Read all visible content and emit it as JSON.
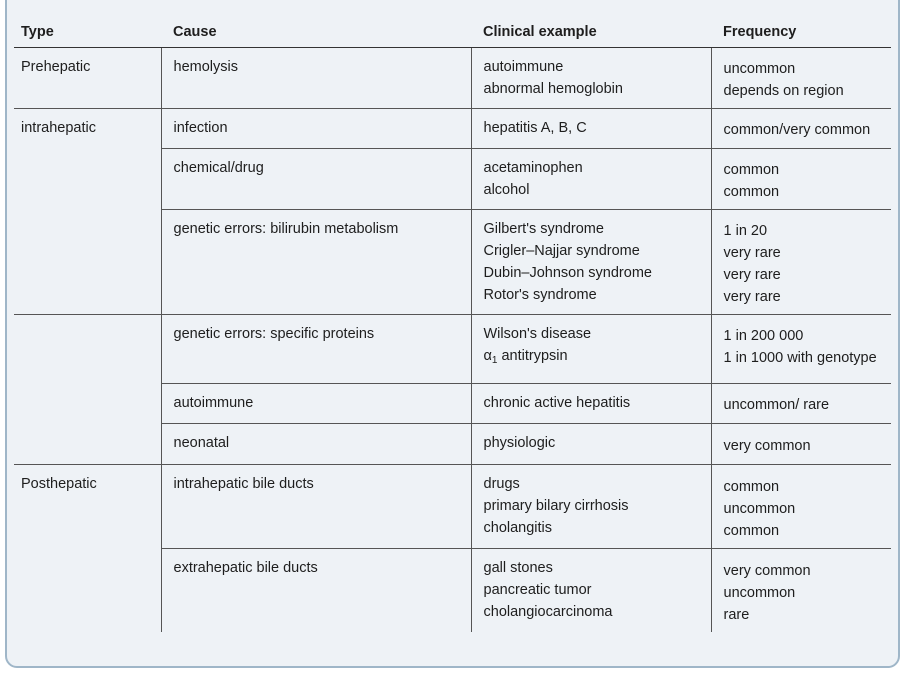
{
  "table": {
    "headers": {
      "type": "Type",
      "cause": "Cause",
      "example": "Clinical example",
      "frequency": "Frequency"
    },
    "rows": [
      {
        "type": "Prehepatic",
        "cause": "hemolysis",
        "examples": [
          "autoimmune",
          "abnormal hemoglobin"
        ],
        "frequencies": [
          "uncommon",
          "depends on region"
        ]
      },
      {
        "type": "intrahepatic",
        "cause": "infection",
        "examples": [
          "hepatitis A, B, C"
        ],
        "frequencies": [
          "common/very common"
        ]
      },
      {
        "type": "",
        "cause": "chemical/drug",
        "examples": [
          "acetaminophen",
          "alcohol"
        ],
        "frequencies": [
          "common",
          "common"
        ]
      },
      {
        "type": "",
        "cause": "genetic errors: bilirubin metabolism",
        "examples": [
          "Gilbert's syndrome",
          "Crigler–Najjar syndrome",
          "Dubin–Johnson syndrome",
          "Rotor's syndrome"
        ],
        "frequencies": [
          "1 in 20",
          "very rare",
          "very rare",
          "very rare"
        ]
      },
      {
        "type": "",
        "cause": "genetic errors: specific proteins",
        "examples": [
          "Wilson's disease",
          "antitrypsin"
        ],
        "example_alpha_prefix": "α",
        "example_alpha_sub": "1",
        "frequencies": [
          "1 in 200 000",
          "1 in 1000 with genotype"
        ]
      },
      {
        "type": "",
        "cause": "autoimmune",
        "examples": [
          "chronic active hepatitis"
        ],
        "frequencies": [
          "uncommon/ rare"
        ]
      },
      {
        "type": "",
        "cause": "neonatal",
        "examples": [
          "physiologic"
        ],
        "frequencies": [
          "very common"
        ]
      },
      {
        "type": "Posthepatic",
        "cause": "intrahepatic bile ducts",
        "examples": [
          "drugs",
          "primary bilary cirrhosis",
          "cholangitis"
        ],
        "frequencies": [
          "common",
          "uncommon",
          "common"
        ]
      },
      {
        "type": "",
        "cause": "extrahepatic bile ducts",
        "examples": [
          "gall stones",
          "pancreatic tumor",
          "cholangiocarcinoma"
        ],
        "frequencies": [
          "very common",
          "uncommon",
          "rare"
        ]
      }
    ]
  }
}
